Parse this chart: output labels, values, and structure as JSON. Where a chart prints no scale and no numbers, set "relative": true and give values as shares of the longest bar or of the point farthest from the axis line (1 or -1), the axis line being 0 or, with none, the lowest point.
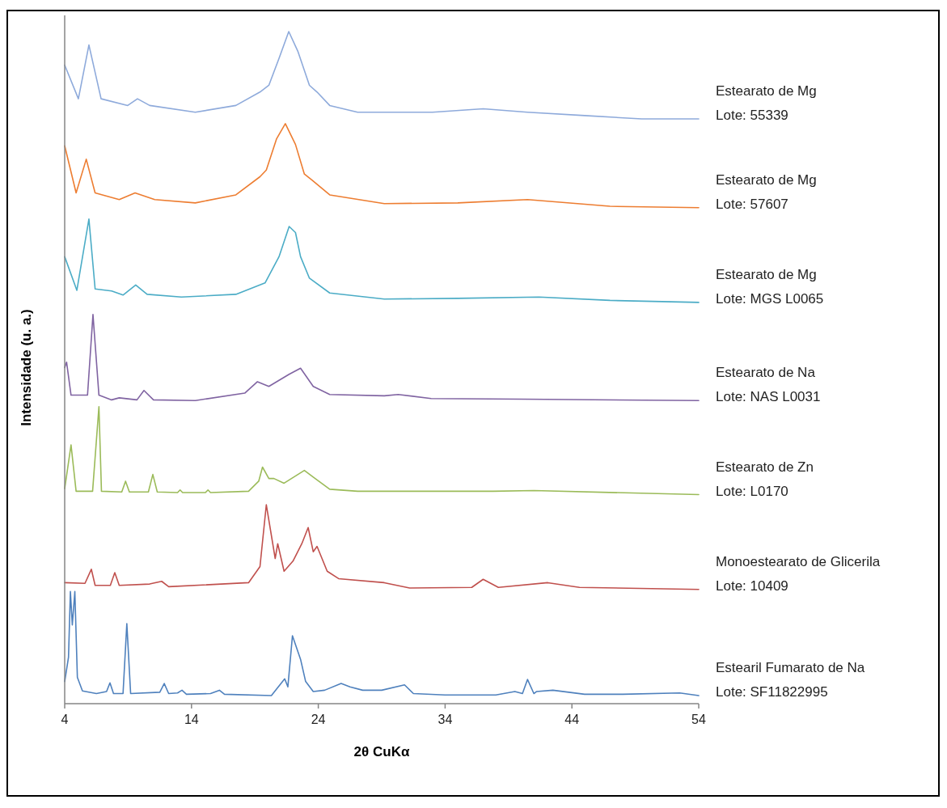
{
  "chart_data": {
    "type": "line",
    "relative": true,
    "xlabel": "2θ CuKα",
    "ylabel": "Intensidade (u. a.)",
    "xlim": [
      4,
      54
    ],
    "xticks": [
      4,
      14,
      24,
      34,
      44,
      54
    ],
    "series": [
      {
        "name": "Estearato de Mg\nLote: 55339",
        "color": "#8eaadb",
        "x": [
          4,
          5.08,
          5.91,
          6.87,
          8.97,
          9.74,
          10.7,
          14.3,
          17.5,
          19.4,
          20.1,
          20.9,
          21.67,
          22.4,
          23.3,
          23.9,
          24.9,
          27.1,
          29.2,
          33,
          37,
          40.5,
          45,
          49.5,
          54
        ],
        "values": [
          0.95,
          0.9,
          0.98,
          0.9,
          0.89,
          0.9,
          0.89,
          0.88,
          0.89,
          0.91,
          0.92,
          0.96,
          1.0,
          0.97,
          0.92,
          0.91,
          0.89,
          0.88,
          0.88,
          0.88,
          0.885,
          0.88,
          0.875,
          0.87,
          0.87
        ]
      },
      {
        "name": "Estearato de Mg\nLote: 57607",
        "color": "#ed7d31",
        "x": [
          4,
          4.9,
          5.7,
          6.4,
          8.3,
          9.55,
          11.1,
          14.3,
          17.5,
          19.4,
          19.9,
          20.7,
          21.4,
          22.2,
          22.9,
          23.5,
          24.9,
          29.2,
          35,
          40.5,
          47,
          54
        ],
        "values": [
          0.83,
          0.76,
          0.81,
          0.76,
          0.75,
          0.76,
          0.75,
          0.745,
          0.757,
          0.784,
          0.794,
          0.84,
          0.863,
          0.832,
          0.788,
          0.779,
          0.757,
          0.744,
          0.745,
          0.75,
          0.74,
          0.738
        ]
      },
      {
        "name": "Estearato de Mg\nLote: MGS L0065",
        "color": "#4bacc6",
        "x": [
          4,
          4.96,
          5.91,
          6.4,
          7.7,
          8.6,
          9.6,
          10.5,
          13.2,
          17.5,
          19.8,
          20.9,
          21.7,
          22.2,
          22.6,
          23.3,
          24.9,
          29.2,
          35,
          41.4,
          47,
          54
        ],
        "values": [
          0.665,
          0.615,
          0.721,
          0.617,
          0.614,
          0.608,
          0.623,
          0.609,
          0.605,
          0.609,
          0.626,
          0.665,
          0.71,
          0.701,
          0.665,
          0.633,
          0.611,
          0.602,
          0.603,
          0.605,
          0.6,
          0.597
        ]
      },
      {
        "name": "Estearato de Na\nLote: NAS L0031",
        "color": "#8064a2",
        "x": [
          4,
          4.15,
          4.5,
          5.8,
          6.23,
          6.7,
          7.7,
          8.3,
          9.7,
          10.25,
          11,
          14.3,
          18.2,
          19.2,
          20.1,
          21.7,
          22.6,
          23.6,
          24.9,
          29.2,
          30.3,
          32.9,
          40,
          54
        ],
        "values": [
          0.5,
          0.508,
          0.459,
          0.459,
          0.579,
          0.459,
          0.452,
          0.455,
          0.452,
          0.466,
          0.452,
          0.451,
          0.462,
          0.479,
          0.472,
          0.49,
          0.499,
          0.472,
          0.46,
          0.458,
          0.46,
          0.454,
          0.453,
          0.451
        ]
      },
      {
        "name": "Estearato de Zn\nLote: L0170",
        "color": "#9bbb59",
        "x": [
          4,
          4.5,
          4.9,
          6.2,
          6.7,
          6.9,
          8.5,
          8.8,
          9.1,
          10.6,
          10.95,
          11.3,
          12.9,
          13.1,
          13.3,
          15.1,
          15.3,
          15.5,
          18.5,
          19.3,
          19.6,
          20.1,
          20.5,
          21.3,
          22.9,
          23.6,
          24.9,
          27.1,
          37.8,
          41,
          54
        ],
        "values": [
          0.32,
          0.385,
          0.316,
          0.316,
          0.442,
          0.316,
          0.315,
          0.331,
          0.315,
          0.315,
          0.341,
          0.315,
          0.314,
          0.318,
          0.314,
          0.314,
          0.318,
          0.314,
          0.316,
          0.331,
          0.352,
          0.335,
          0.335,
          0.328,
          0.347,
          0.337,
          0.319,
          0.316,
          0.316,
          0.317,
          0.311
        ]
      },
      {
        "name": "Monoestearato de Glicerila\nLote: 10409",
        "color": "#c0504d",
        "x": [
          4,
          5.6,
          6.1,
          6.4,
          7.6,
          7.95,
          8.3,
          10.7,
          11.65,
          12.2,
          18.5,
          19.4,
          19.9,
          20.6,
          20.8,
          21.3,
          22,
          22.7,
          23.2,
          23.6,
          23.9,
          24.7,
          25.6,
          29.2,
          31.2,
          36.1,
          37,
          38.2,
          42.1,
          44.6,
          54
        ],
        "values": [
          0.18,
          0.179,
          0.2,
          0.176,
          0.176,
          0.195,
          0.176,
          0.178,
          0.182,
          0.174,
          0.18,
          0.204,
          0.296,
          0.216,
          0.238,
          0.197,
          0.212,
          0.238,
          0.262,
          0.226,
          0.234,
          0.197,
          0.186,
          0.18,
          0.172,
          0.173,
          0.185,
          0.173,
          0.18,
          0.173,
          0.17
        ]
      },
      {
        "name": "Estearil Fumarato de Na\nLote: SF11822995",
        "color": "#4f81bd",
        "x": [
          4,
          4.3,
          4.45,
          4.6,
          4.8,
          5,
          5.4,
          6.5,
          7.3,
          7.57,
          7.85,
          8.6,
          8.9,
          9.2,
          11.5,
          11.85,
          12.2,
          12.9,
          13.25,
          13.6,
          15.5,
          16.2,
          16.6,
          20.3,
          21.35,
          21.6,
          21.96,
          22.6,
          23,
          23.6,
          24.5,
          25.8,
          26.5,
          27.5,
          29,
          30.8,
          31.5,
          34,
          38,
          39.5,
          40.1,
          40.5,
          41,
          41.2,
          42.5,
          45,
          48,
          52.5,
          54
        ],
        "values": [
          0.033,
          0.069,
          0.167,
          0.117,
          0.167,
          0.039,
          0.019,
          0.015,
          0.018,
          0.031,
          0.015,
          0.015,
          0.119,
          0.015,
          0.017,
          0.03,
          0.015,
          0.016,
          0.02,
          0.014,
          0.015,
          0.02,
          0.014,
          0.012,
          0.037,
          0.025,
          0.101,
          0.066,
          0.033,
          0.018,
          0.02,
          0.03,
          0.025,
          0.02,
          0.02,
          0.028,
          0.015,
          0.013,
          0.013,
          0.018,
          0.015,
          0.036,
          0.015,
          0.018,
          0.02,
          0.014,
          0.014,
          0.016,
          0.012
        ]
      }
    ]
  }
}
